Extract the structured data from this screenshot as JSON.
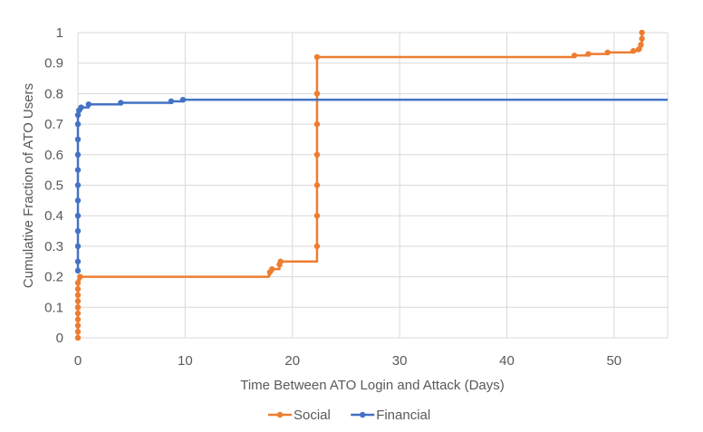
{
  "chart_data": {
    "type": "line",
    "title": "",
    "xlabel": "Time Between ATO Login and Attack (Days)",
    "ylabel": "Cumulative Fraction of ATO Users",
    "xlim": [
      0,
      55
    ],
    "ylim": [
      0,
      1
    ],
    "x_ticks": [
      "0",
      "10",
      "20",
      "30",
      "40",
      "50"
    ],
    "y_ticks": [
      "0",
      "0.1",
      "0.2",
      "0.3",
      "0.4",
      "0.5",
      "0.6",
      "0.7",
      "0.8",
      "0.9",
      "1"
    ],
    "grid": "vertical-and-horizontal",
    "legend_position": "bottom",
    "series": [
      {
        "name": "Social",
        "color": "#ED7D31",
        "step_points": [
          [
            0,
            0
          ],
          [
            0,
            0.19
          ],
          [
            0.2,
            0.2
          ],
          [
            17.8,
            0.205
          ],
          [
            17.9,
            0.215
          ],
          [
            18.1,
            0.225
          ],
          [
            18.8,
            0.24
          ],
          [
            18.9,
            0.25
          ],
          [
            22.3,
            0.255
          ],
          [
            22.3,
            0.92
          ],
          [
            46.3,
            0.925
          ],
          [
            47.6,
            0.93
          ],
          [
            49.4,
            0.935
          ],
          [
            51.8,
            0.94
          ],
          [
            52.3,
            0.945
          ],
          [
            52.5,
            0.96
          ],
          [
            52.6,
            0.98
          ],
          [
            52.6,
            1.0
          ]
        ],
        "markers": [
          [
            0,
            0.0
          ],
          [
            0,
            0.02
          ],
          [
            0,
            0.04
          ],
          [
            0,
            0.06
          ],
          [
            0,
            0.08
          ],
          [
            0,
            0.1
          ],
          [
            0,
            0.12
          ],
          [
            0,
            0.14
          ],
          [
            0,
            0.16
          ],
          [
            0,
            0.18
          ],
          [
            0.2,
            0.2
          ],
          [
            17.9,
            0.215
          ],
          [
            18.1,
            0.225
          ],
          [
            18.8,
            0.24
          ],
          [
            18.9,
            0.25
          ],
          [
            22.3,
            0.3
          ],
          [
            22.3,
            0.4
          ],
          [
            22.3,
            0.5
          ],
          [
            22.3,
            0.6
          ],
          [
            22.3,
            0.7
          ],
          [
            22.3,
            0.8
          ],
          [
            22.3,
            0.92
          ],
          [
            46.3,
            0.925
          ],
          [
            47.6,
            0.93
          ],
          [
            49.4,
            0.935
          ],
          [
            51.8,
            0.94
          ],
          [
            52.3,
            0.945
          ],
          [
            52.5,
            0.96
          ],
          [
            52.6,
            0.98
          ],
          [
            52.6,
            1.0
          ]
        ]
      },
      {
        "name": "Financial",
        "color": "#4472C4",
        "step_points": [
          [
            0,
            0.22
          ],
          [
            0,
            0.73
          ],
          [
            0.1,
            0.745
          ],
          [
            0.3,
            0.755
          ],
          [
            1.0,
            0.765
          ],
          [
            4.0,
            0.77
          ],
          [
            8.7,
            0.775
          ],
          [
            9.8,
            0.78
          ],
          [
            55,
            0.78
          ]
        ],
        "markers": [
          [
            0,
            0.22
          ],
          [
            0,
            0.25
          ],
          [
            0,
            0.3
          ],
          [
            0,
            0.35
          ],
          [
            0,
            0.4
          ],
          [
            0,
            0.45
          ],
          [
            0,
            0.5
          ],
          [
            0,
            0.55
          ],
          [
            0,
            0.6
          ],
          [
            0,
            0.65
          ],
          [
            0,
            0.7
          ],
          [
            0,
            0.73
          ],
          [
            0.1,
            0.745
          ],
          [
            0.3,
            0.755
          ],
          [
            1.0,
            0.765
          ],
          [
            4.0,
            0.77
          ],
          [
            8.7,
            0.775
          ],
          [
            9.8,
            0.78
          ]
        ]
      }
    ]
  }
}
